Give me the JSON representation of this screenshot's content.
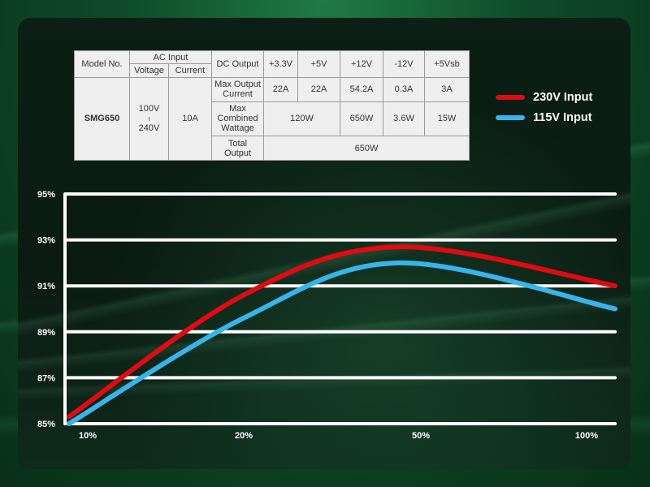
{
  "spec_table": {
    "model_no_label": "Model No.",
    "ac_input_label": "AC Input",
    "voltage_label": "Voltage",
    "current_label": "Current",
    "dc_output_label": "DC Output",
    "rails": [
      "+3.3V",
      "+5V",
      "+12V",
      "-12V",
      "+5Vsb"
    ],
    "model": "SMG650",
    "voltage_top": "100V",
    "voltage_sep": "I",
    "voltage_bottom": "240V",
    "current": "10A",
    "max_output_current_label": "Max Output Current",
    "max_output_current": [
      "22A",
      "22A",
      "54.2A",
      "0.3A",
      "3A"
    ],
    "max_combined_wattage_label": "Max Combined Wattage",
    "combined_3v3_5v": "120W",
    "combined_12v": "650W",
    "combined_minus12v": "3.6W",
    "combined_5vsb": "15W",
    "total_output_label": "Total Output",
    "total_output": "650W"
  },
  "chart_data": {
    "type": "line",
    "x": [
      "10%",
      "20%",
      "50%",
      "100%"
    ],
    "ylim": [
      85,
      95
    ],
    "yticks": [
      "85%",
      "87%",
      "89%",
      "91%",
      "93%",
      "95%"
    ],
    "grid": true,
    "legend_position": "top-right",
    "series": [
      {
        "name": "230V Input",
        "color": "#e00a12",
        "values": [
          85.3,
          90.6,
          92.7,
          91.0
        ]
      },
      {
        "name": "115V Input",
        "color": "#36b4ec",
        "values": [
          85.0,
          89.6,
          92.0,
          90.0
        ]
      }
    ]
  }
}
